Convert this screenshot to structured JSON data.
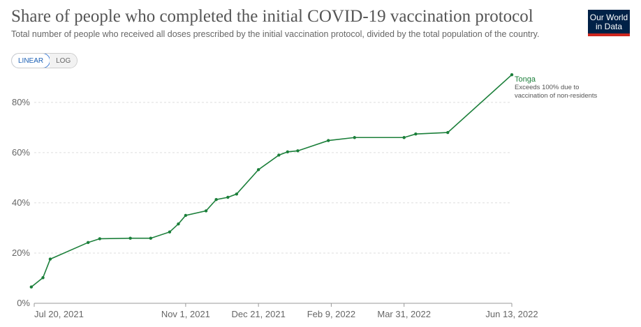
{
  "header": {
    "title": "Share of people who completed the initial COVID-19 vaccination protocol",
    "subtitle": "Total number of people who received all doses prescribed by the initial vaccination protocol, divided by the total population of the country."
  },
  "logo": {
    "line1": "Our World",
    "line2": "in Data"
  },
  "scale_toggle": {
    "linear_label": "LINEAR",
    "log_label": "LOG",
    "selected": "linear"
  },
  "colors": {
    "series": "#1b7f3a",
    "grid": "#dddddd",
    "axis": "#999999",
    "logo_bg": "#002147",
    "logo_accent": "#ce261e"
  },
  "chart_data": {
    "type": "line",
    "title": "Share of people who completed the initial COVID-19 vaccination protocol",
    "xlabel": "",
    "ylabel": "",
    "ylim": [
      0,
      93
    ],
    "xlim": [
      "2021-07-20",
      "2022-06-13"
    ],
    "x_ticks": [
      "Jul 20, 2021",
      "Nov 1, 2021",
      "Dec 21, 2021",
      "Feb 9, 2022",
      "Mar 31, 2022",
      "Jun 13, 2022"
    ],
    "x_tick_dates": [
      "2021-07-20",
      "2021-11-01",
      "2021-12-21",
      "2022-02-09",
      "2022-03-31",
      "2022-06-13"
    ],
    "y_ticks": [
      0,
      20,
      40,
      60,
      80
    ],
    "y_tick_labels": [
      "0%",
      "20%",
      "40%",
      "60%",
      "80%"
    ],
    "grid": "horizontal dashed",
    "series": [
      {
        "name": "Tonga",
        "annotation": [
          "Exceeds 100% due to",
          "vaccination of non-residents"
        ],
        "x": [
          "2021-07-18",
          "2021-07-26",
          "2021-07-31",
          "2021-08-26",
          "2021-09-03",
          "2021-09-24",
          "2021-10-08",
          "2021-10-21",
          "2021-10-27",
          "2021-11-01",
          "2021-11-15",
          "2021-11-22",
          "2021-11-30",
          "2021-12-06",
          "2021-12-21",
          "2022-01-04",
          "2022-01-10",
          "2022-01-17",
          "2022-02-07",
          "2022-02-25",
          "2022-03-31",
          "2022-04-08",
          "2022-04-30",
          "2022-06-13"
        ],
        "values": [
          6.5,
          10.2,
          17.6,
          24.2,
          25.7,
          25.9,
          25.9,
          28.4,
          31.6,
          35.0,
          36.8,
          41.3,
          42.2,
          43.5,
          53.2,
          59.0,
          60.3,
          60.7,
          64.8,
          66.0,
          66.0,
          67.4,
          68.0,
          91.0
        ]
      }
    ]
  }
}
